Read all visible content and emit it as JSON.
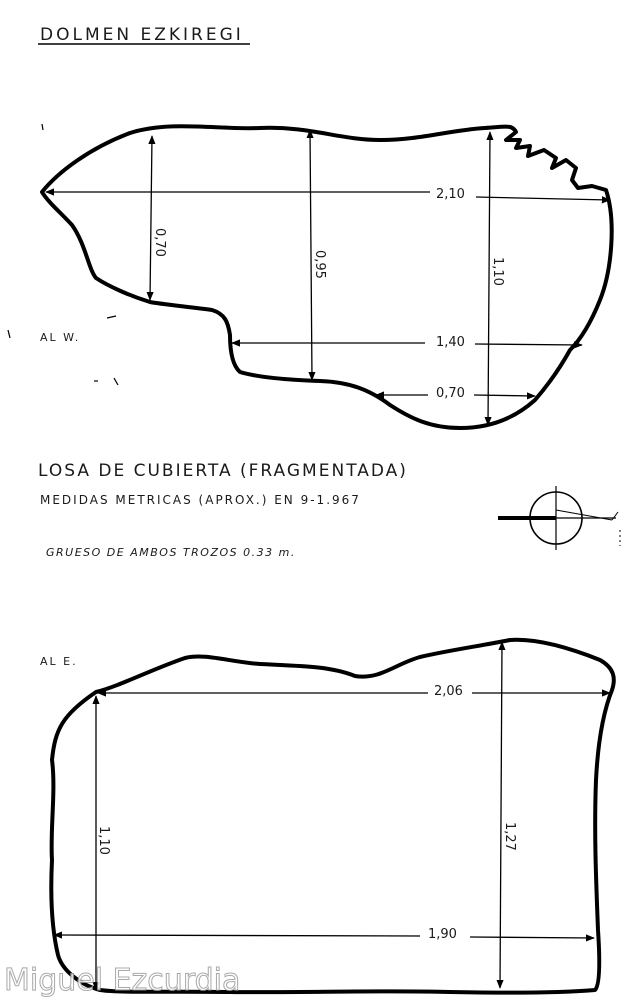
{
  "title": "DOLMEN EZKIREGI",
  "slab_top": {
    "side_label": "AL W.",
    "measurements": {
      "length_top": "2,10",
      "width_left": "0,70",
      "width_middle": "0,95",
      "width_right": "1,10",
      "length_middle": "1,40",
      "length_bottom": "0,70"
    }
  },
  "caption": {
    "line1": "LOSA DE CUBIERTA (FRAGMENTADA)",
    "line2": "MEDIDAS METRICAS (APROX.) EN 9-1.967",
    "line3": "GRUESO DE AMBOS TROZOS   0.33 m."
  },
  "slab_bottom": {
    "side_label": "AL E.",
    "measurements": {
      "length_top": "2,06",
      "width_left": "1,10",
      "width_right": "1,27",
      "length_bottom": "1,90"
    }
  },
  "watermark": "Miguel Ezcurdia"
}
